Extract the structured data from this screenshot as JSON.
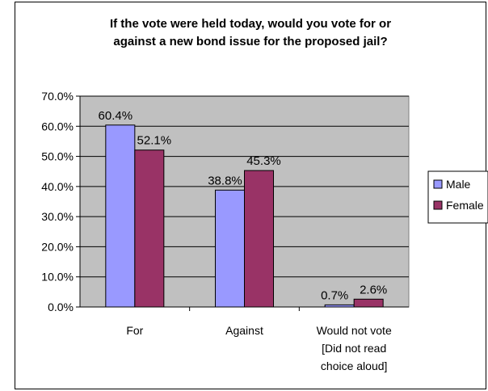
{
  "chart_data": {
    "type": "bar",
    "title": [
      "If the vote were held today, would you vote for or",
      "against a new bond issue for the proposed jail?"
    ],
    "categories": [
      [
        "For"
      ],
      [
        "Against"
      ],
      [
        "Would not vote",
        "[Did not read",
        "choice aloud]"
      ]
    ],
    "series": [
      {
        "name": "Male",
        "values": [
          60.4,
          38.8,
          0.7
        ],
        "labels": [
          "60.4%",
          "38.8%",
          "0.7%"
        ],
        "color": "#9999ff"
      },
      {
        "name": "Female",
        "values": [
          52.1,
          45.3,
          2.6
        ],
        "labels": [
          "52.1%",
          "45.3%",
          "2.6%"
        ],
        "color": "#993366"
      }
    ],
    "y_ticks": [
      "0.0%",
      "10.0%",
      "20.0%",
      "30.0%",
      "40.0%",
      "50.0%",
      "60.0%",
      "70.0%"
    ],
    "ylim": [
      0,
      70
    ],
    "plot_background": "#c0c0c0",
    "grid": true,
    "legend_position": "right"
  }
}
